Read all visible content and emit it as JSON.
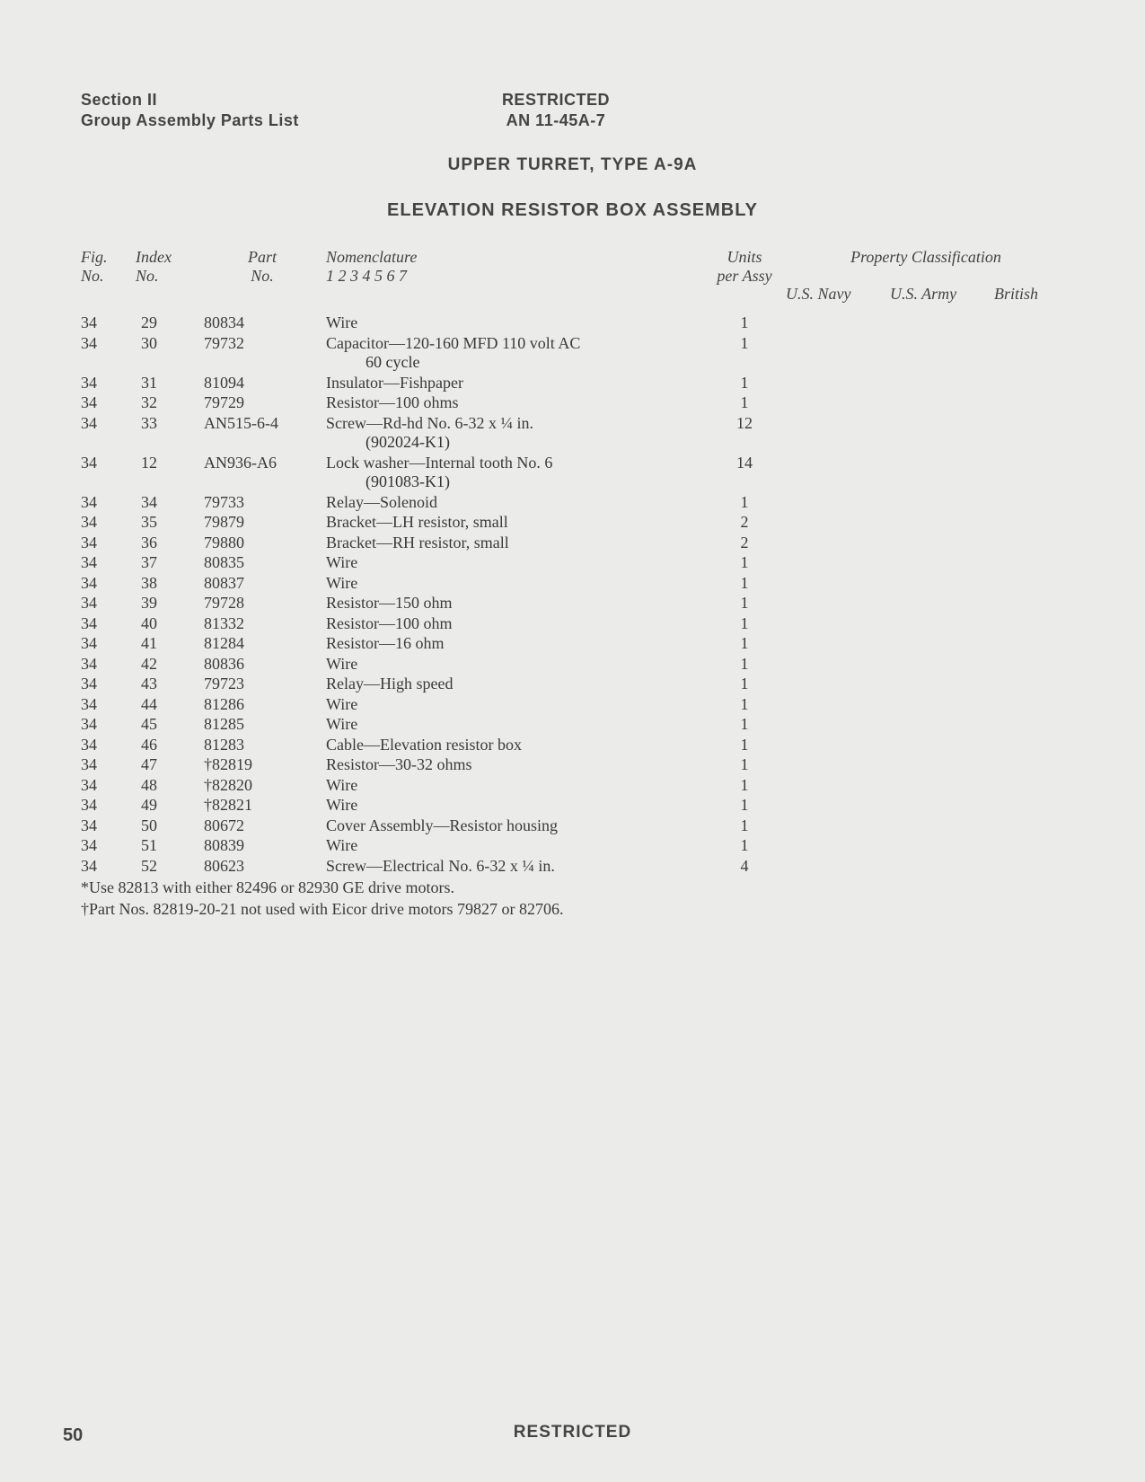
{
  "header": {
    "left_line1": "Section II",
    "left_line2": "Group  Assembly  Parts  List",
    "center_line1": "RESTRICTED",
    "center_line2": "AN 11-45A-7"
  },
  "titles": {
    "t1": "UPPER  TURRET,  TYPE  A-9A",
    "t2": "ELEVATION  RESISTOR  BOX  ASSEMBLY"
  },
  "columns": {
    "fig_no": "Fig.\nNo.",
    "index_no": "Index\nNo.",
    "part_no": "Part\nNo.",
    "nomenclature": "Nomenclature\n1 2 3 4 5 6 7",
    "units_per_assy": "Units\nper Assy",
    "prop_class": "Property Classification",
    "navy": "U.S. Navy",
    "army": "U.S. Army",
    "british": "British"
  },
  "rows": [
    {
      "fig": "34",
      "idx": "29",
      "part": "80834",
      "nom": "Wire",
      "units": "1"
    },
    {
      "fig": "34",
      "idx": "30",
      "part": "79732",
      "nom": "Capacitor—120-160 MFD 110 volt AC",
      "nom2": "60 cycle",
      "units": "1"
    },
    {
      "fig": "34",
      "idx": "31",
      "part": "81094",
      "nom": "Insulator—Fishpaper",
      "units": "1"
    },
    {
      "fig": "34",
      "idx": "32",
      "part": "79729",
      "nom": "Resistor—100 ohms",
      "units": "1"
    },
    {
      "fig": "34",
      "idx": "33",
      "part": "AN515-6-4",
      "nom": "Screw—Rd-hd No. 6-32 x ¼ in.",
      "nom2": "(902024-K1)",
      "units": "12"
    },
    {
      "fig": "34",
      "idx": "12",
      "part": "AN936-A6",
      "nom": "Lock washer—Internal tooth No. 6",
      "nom2": "(901083-K1)",
      "units": "14"
    },
    {
      "fig": "34",
      "idx": "34",
      "part": "79733",
      "nom": "Relay—Solenoid",
      "units": "1"
    },
    {
      "fig": "34",
      "idx": "35",
      "part": "79879",
      "nom": "Bracket—LH resistor, small",
      "units": "2"
    },
    {
      "fig": "34",
      "idx": "36",
      "part": "79880",
      "nom": "Bracket—RH resistor, small",
      "units": "2"
    },
    {
      "fig": "34",
      "idx": "37",
      "part": "80835",
      "nom": "Wire",
      "units": "1"
    },
    {
      "fig": "34",
      "idx": "38",
      "part": "80837",
      "nom": "Wire",
      "units": "1"
    },
    {
      "fig": "34",
      "idx": "39",
      "part": "79728",
      "nom": "Resistor—150 ohm",
      "units": "1"
    },
    {
      "fig": "34",
      "idx": "40",
      "part": "81332",
      "nom": "Resistor—100 ohm",
      "units": "1"
    },
    {
      "fig": "34",
      "idx": "41",
      "part": "81284",
      "nom": "Resistor—16 ohm",
      "units": "1"
    },
    {
      "fig": "34",
      "idx": "42",
      "part": "80836",
      "nom": "Wire",
      "units": "1"
    },
    {
      "fig": "34",
      "idx": "43",
      "part": "79723",
      "nom": "Relay—High speed",
      "units": "1"
    },
    {
      "fig": "34",
      "idx": "44",
      "part": "81286",
      "nom": "Wire",
      "units": "1"
    },
    {
      "fig": "34",
      "idx": "45",
      "part": "81285",
      "nom": "Wire",
      "units": "1"
    },
    {
      "fig": "34",
      "idx": "46",
      "part": "81283",
      "nom": "Cable—Elevation resistor box",
      "units": "1"
    },
    {
      "fig": "34",
      "idx": "47",
      "part": "†82819",
      "nom": "Resistor—30-32 ohms",
      "units": "1"
    },
    {
      "fig": "34",
      "idx": "48",
      "part": "†82820",
      "nom": "Wire",
      "units": "1"
    },
    {
      "fig": "34",
      "idx": "49",
      "part": "†82821",
      "nom": "Wire",
      "units": "1"
    },
    {
      "fig": "34",
      "idx": "50",
      "part": "80672",
      "nom": "Cover Assembly—Resistor housing",
      "units": "1"
    },
    {
      "fig": "34",
      "idx": "51",
      "part": "80839",
      "nom": "Wire",
      "units": "1"
    },
    {
      "fig": "34",
      "idx": "52",
      "part": "80623",
      "nom": "Screw—Electrical No. 6-32 x ¼ in.",
      "units": "4"
    }
  ],
  "notes": {
    "n1": "*Use 82813 with either 82496 or 82930 GE drive motors.",
    "n2": "†Part Nos. 82819-20-21 not used with Eicor drive motors 79827 or 82706."
  },
  "footer": {
    "restricted": "RESTRICTED",
    "page": "50"
  }
}
